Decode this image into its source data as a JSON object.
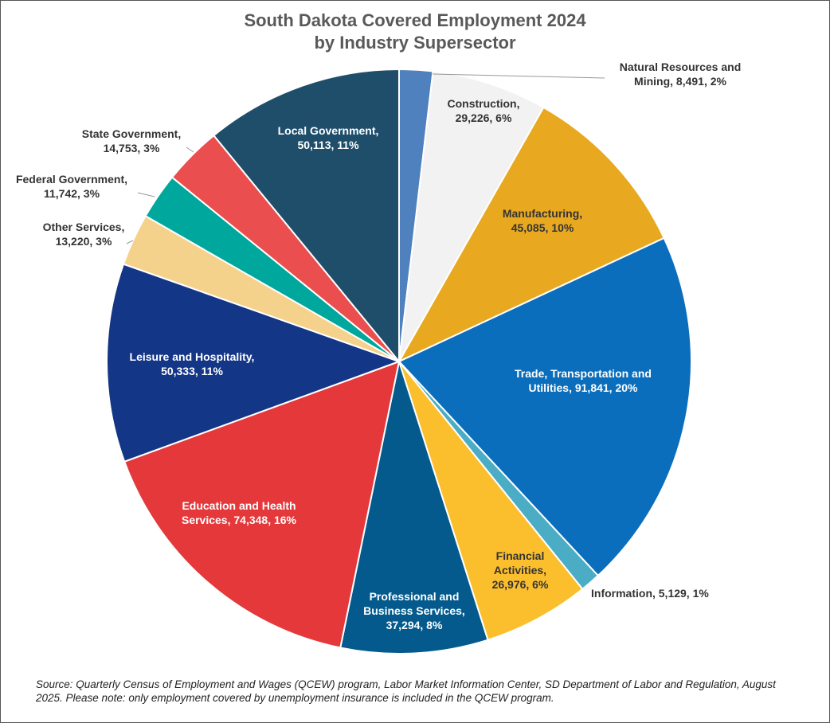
{
  "chart_data": {
    "type": "pie",
    "title": "South Dakota Covered Employment 2024",
    "subtitle": "by Industry Supersector",
    "slices": [
      {
        "name": "Natural Resources and Mining",
        "value": 8491,
        "percent": "2%",
        "color": "#4E81BD",
        "label_lines": [
          "Natural Resources and",
          "Mining, 8,491, 2%"
        ]
      },
      {
        "name": "Construction",
        "value": 29226,
        "percent": "6%",
        "color": "#F2F2F2",
        "label_lines": [
          "Construction,",
          "29,226, 6%"
        ]
      },
      {
        "name": "Manufacturing",
        "value": 45085,
        "percent": "10%",
        "color": "#E8A920",
        "label_lines": [
          "Manufacturing,",
          "45,085, 10%"
        ]
      },
      {
        "name": "Trade, Transportation and Utilities",
        "value": 91841,
        "percent": "20%",
        "color": "#0A6EBD",
        "label_lines": [
          "Trade, Transportation and",
          "Utilities, 91,841, 20%"
        ]
      },
      {
        "name": "Information",
        "value": 5129,
        "percent": "1%",
        "color": "#4BACC6",
        "label_lines": [
          "Information, 5,129, 1%"
        ]
      },
      {
        "name": "Financial Activities",
        "value": 26976,
        "percent": "6%",
        "color": "#FBBF2E",
        "label_lines": [
          "Financial",
          "Activities,",
          "26,976, 6%"
        ]
      },
      {
        "name": "Professional and Business Services",
        "value": 37294,
        "percent": "8%",
        "color": "#045A8D",
        "label_lines": [
          "Professional and",
          "Business Services,",
          "37,294, 8%"
        ]
      },
      {
        "name": "Education and Health Services",
        "value": 74348,
        "percent": "16%",
        "color": "#E5383B",
        "label_lines": [
          "Education and Health",
          "Services, 74,348, 16%"
        ]
      },
      {
        "name": "Leisure and Hospitality",
        "value": 50333,
        "percent": "11%",
        "color": "#143686",
        "label_lines": [
          "Leisure and Hospitality,",
          "50,333, 11%"
        ]
      },
      {
        "name": "Other Services",
        "value": 13220,
        "percent": "3%",
        "color": "#F5D28C",
        "label_lines": [
          "Other Services,",
          "13,220, 3%"
        ]
      },
      {
        "name": "Federal Government",
        "value": 11742,
        "percent": "3%",
        "color": "#00A79D",
        "label_lines": [
          "Federal Government,",
          "11,742, 3%"
        ]
      },
      {
        "name": "State Government",
        "value": 14753,
        "percent": "3%",
        "color": "#EA4E4E",
        "label_lines": [
          "State Government,",
          "14,753, 3%"
        ]
      },
      {
        "name": "Local Government",
        "value": 50113,
        "percent": "11%",
        "color": "#1F4E6B",
        "label_lines": [
          "Local Government,",
          "50,113, 11%"
        ]
      }
    ],
    "source_note": "Source: Quarterly Census of Employment and Wages (QCEW) program, Labor Market Information Center, SD Department of Labor and Regulation, August 2025. Please note: only employment covered by unemployment insurance is included in the QCEW program."
  }
}
